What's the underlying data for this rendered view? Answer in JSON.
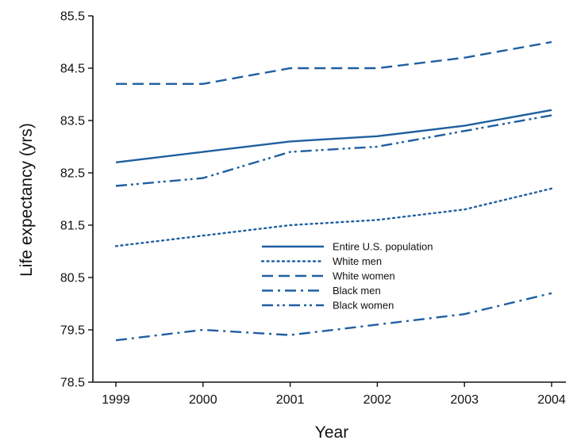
{
  "chart_data": {
    "type": "line",
    "title": "",
    "xlabel": "Year",
    "ylabel": "Life expectancy (yrs)",
    "x": [
      1999,
      2000,
      2001,
      2002,
      2003,
      2004
    ],
    "xlim": [
      1999,
      2004
    ],
    "ylim": [
      78.5,
      85.5
    ],
    "yticks": [
      78.5,
      79.5,
      80.5,
      81.5,
      82.5,
      83.5,
      84.5,
      85.5
    ],
    "ytick_labels": [
      "78.5",
      "79.5",
      "80.5",
      "81.5",
      "82.5",
      "83.5",
      "84.5",
      "85.5"
    ],
    "xtick_labels": [
      "1999",
      "2000",
      "2001",
      "2002",
      "2003",
      "2004"
    ],
    "grid": false,
    "legend_position": "center",
    "series": [
      {
        "name": "Entire U.S. population",
        "style": "solid",
        "values": [
          82.7,
          82.9,
          83.1,
          83.2,
          83.4,
          83.7
        ]
      },
      {
        "name": "White men",
        "style": "dotted",
        "values": [
          81.1,
          81.3,
          81.5,
          81.6,
          81.8,
          82.2
        ]
      },
      {
        "name": "White women",
        "style": "dashed",
        "values": [
          84.2,
          84.2,
          84.5,
          84.5,
          84.7,
          85.0
        ]
      },
      {
        "name": "Black men",
        "style": "dash-dot",
        "values": [
          79.3,
          79.5,
          79.4,
          79.6,
          79.8,
          80.2
        ]
      },
      {
        "name": "Black women",
        "style": "dash-dot-dot",
        "values": [
          82.25,
          82.4,
          82.9,
          83.0,
          83.3,
          83.6
        ]
      }
    ],
    "line_color": "#1f5fa0",
    "axis_color": "#111111"
  }
}
